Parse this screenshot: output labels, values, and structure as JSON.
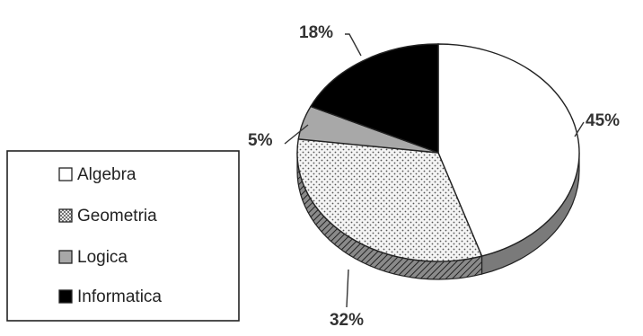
{
  "chart_data": {
    "type": "pie",
    "style": "3d",
    "slices": [
      {
        "name": "Algebra",
        "value": 45,
        "label": "45%",
        "color": "#ffffff",
        "pattern": "none"
      },
      {
        "name": "Geometria",
        "value": 32,
        "label": "32%",
        "color": "#f2f2f2",
        "pattern": "dots"
      },
      {
        "name": "Logica",
        "value": 5,
        "label": "5%",
        "color": "#a8a8a8",
        "pattern": "none"
      },
      {
        "name": "Informatica",
        "value": 18,
        "label": "18%",
        "color": "#000000",
        "pattern": "none"
      }
    ],
    "legend": {
      "placement": "left",
      "entries": [
        "Algebra",
        "Geometria",
        "Logica",
        "Informatica"
      ]
    }
  }
}
